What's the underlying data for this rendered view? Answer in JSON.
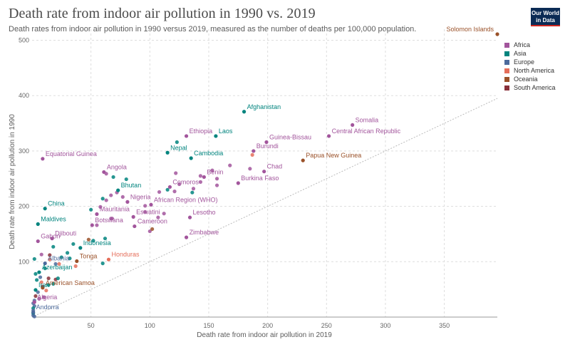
{
  "header": {
    "title": "Death rate from indoor air pollution in 1990 vs. 2019",
    "subtitle": "Death rates from indoor air pollution in 1990 versus 2019, measured as the number of deaths per 100,000 population.",
    "logo_line1": "Our World",
    "logo_line2": "in Data"
  },
  "colors": {
    "Africa": "#a2559c",
    "Asia": "#00847e",
    "Europe": "#4c6a9c",
    "North America": "#e56e5a",
    "Oceania": "#9a5129",
    "South America": "#883039",
    "logo_bg": "#0b2b55",
    "logo_accent": "#ce261e"
  },
  "chart_data": {
    "type": "scatter",
    "title": "Death rate from indoor air pollution in 1990 vs. 2019",
    "xlabel": "Death rate from indoor air pollution in 2019",
    "ylabel": "Death rate from indoor air pollution in 1990",
    "xlim": [
      0,
      395
    ],
    "ylim": [
      0,
      520
    ],
    "xticks": [
      50,
      100,
      150,
      200,
      250,
      300,
      350
    ],
    "yticks": [
      100,
      200,
      300,
      400,
      500
    ],
    "grid": true,
    "diagonal_reference_line": true,
    "legend_position": "right",
    "legend": [
      "Africa",
      "Asia",
      "Europe",
      "North America",
      "Oceania",
      "South America"
    ],
    "labeled_points": [
      {
        "name": "Solomon Islands",
        "region": "Oceania",
        "x": 395,
        "y": 511
      },
      {
        "name": "Afghanistan",
        "region": "Asia",
        "x": 180,
        "y": 371
      },
      {
        "name": "Somalia",
        "region": "Africa",
        "x": 272,
        "y": 347
      },
      {
        "name": "Central African Republic",
        "region": "Africa",
        "x": 252,
        "y": 327
      },
      {
        "name": "Ethiopia",
        "region": "Africa",
        "x": 131,
        "y": 327
      },
      {
        "name": "Laos",
        "region": "Asia",
        "x": 156,
        "y": 327
      },
      {
        "name": "Guinea-Bissau",
        "region": "Africa",
        "x": 199,
        "y": 316
      },
      {
        "name": "Burundi",
        "region": "Africa",
        "x": 188,
        "y": 300
      },
      {
        "name": "Nepal",
        "region": "Asia",
        "x": 115,
        "y": 297
      },
      {
        "name": "Cambodia",
        "region": "Asia",
        "x": 135,
        "y": 287
      },
      {
        "name": "Equatorial Guinea",
        "region": "Africa",
        "x": 9,
        "y": 286
      },
      {
        "name": "Papua New Guinea",
        "region": "Oceania",
        "x": 230,
        "y": 283
      },
      {
        "name": "Chad",
        "region": "Africa",
        "x": 197,
        "y": 263
      },
      {
        "name": "Angola",
        "region": "Africa",
        "x": 61,
        "y": 262
      },
      {
        "name": "Benin",
        "region": "Africa",
        "x": 146,
        "y": 253
      },
      {
        "name": "Burkina Faso",
        "region": "Africa",
        "x": 175,
        "y": 242
      },
      {
        "name": "Comoros",
        "region": "Africa",
        "x": 117,
        "y": 235
      },
      {
        "name": "Bhutan",
        "region": "Asia",
        "x": 73,
        "y": 229
      },
      {
        "name": "Nigeria",
        "region": "Africa",
        "x": 81,
        "y": 208
      },
      {
        "name": "African Region (WHO)",
        "region": "Africa",
        "x": 101,
        "y": 203
      },
      {
        "name": "China",
        "region": "Asia",
        "x": 11,
        "y": 196
      },
      {
        "name": "Mauritania",
        "region": "Africa",
        "x": 55,
        "y": 186
      },
      {
        "name": "Eswatini",
        "region": "Africa",
        "x": 86,
        "y": 181
      },
      {
        "name": "Lesotho",
        "region": "Africa",
        "x": 134,
        "y": 180
      },
      {
        "name": "Maldives",
        "region": "Asia",
        "x": 5,
        "y": 168
      },
      {
        "name": "Botswana",
        "region": "Africa",
        "x": 51,
        "y": 166
      },
      {
        "name": "Cameroon",
        "region": "Africa",
        "x": 87,
        "y": 164
      },
      {
        "name": "Zimbabwe",
        "region": "Africa",
        "x": 131,
        "y": 144
      },
      {
        "name": "Djibouti",
        "region": "Africa",
        "x": 17,
        "y": 142
      },
      {
        "name": "Gabon",
        "region": "Africa",
        "x": 5,
        "y": 137
      },
      {
        "name": "Indonesia",
        "region": "Asia",
        "x": 41,
        "y": 125
      },
      {
        "name": "Honduras",
        "region": "North America",
        "x": 65,
        "y": 104
      },
      {
        "name": "Albania",
        "region": "Europe",
        "x": 11,
        "y": 97
      },
      {
        "name": "Tonga",
        "region": "Oceania",
        "x": 38,
        "y": 101
      },
      {
        "name": "Azerbaijan",
        "region": "Asia",
        "x": 6,
        "y": 81
      },
      {
        "name": "American Samoa",
        "region": "Oceania",
        "x": 9,
        "y": 53
      },
      {
        "name": "Iran",
        "region": "Asia",
        "x": 3,
        "y": 49
      },
      {
        "name": "Algeria",
        "region": "Africa",
        "x": 2,
        "y": 27
      },
      {
        "name": "Andorra",
        "region": "Europe",
        "x": 1,
        "y": 9
      }
    ],
    "unlabeled_points": [
      {
        "region": "Asia",
        "x": 2,
        "y": 105
      },
      {
        "region": "Africa",
        "x": 63,
        "y": 259
      },
      {
        "region": "Asia",
        "x": 69,
        "y": 253
      },
      {
        "region": "Asia",
        "x": 80,
        "y": 249
      },
      {
        "region": "Asia",
        "x": 115,
        "y": 230
      },
      {
        "region": "Africa",
        "x": 72,
        "y": 225
      },
      {
        "region": "Africa",
        "x": 121,
        "y": 227
      },
      {
        "region": "Africa",
        "x": 125,
        "y": 240
      },
      {
        "region": "Africa",
        "x": 168,
        "y": 274
      },
      {
        "region": "Africa",
        "x": 185,
        "y": 268
      },
      {
        "region": "Africa",
        "x": 153,
        "y": 265
      },
      {
        "region": "Africa",
        "x": 143,
        "y": 255
      },
      {
        "region": "Asia",
        "x": 136,
        "y": 225
      },
      {
        "region": "Africa",
        "x": 143,
        "y": 244
      },
      {
        "region": "Africa",
        "x": 137,
        "y": 232
      },
      {
        "region": "North America",
        "x": 187,
        "y": 293
      },
      {
        "region": "Asia",
        "x": 123,
        "y": 316
      },
      {
        "region": "Africa",
        "x": 122,
        "y": 260
      },
      {
        "region": "Africa",
        "x": 157,
        "y": 238
      },
      {
        "region": "Africa",
        "x": 157,
        "y": 250
      },
      {
        "region": "Africa",
        "x": 67,
        "y": 220
      },
      {
        "region": "Africa",
        "x": 63,
        "y": 211
      },
      {
        "region": "Africa",
        "x": 77,
        "y": 217
      },
      {
        "region": "Asia",
        "x": 60,
        "y": 214
      },
      {
        "region": "Africa",
        "x": 108,
        "y": 226
      },
      {
        "region": "Africa",
        "x": 58,
        "y": 199
      },
      {
        "region": "Asia",
        "x": 50,
        "y": 194
      },
      {
        "region": "Africa",
        "x": 96,
        "y": 190
      },
      {
        "region": "Africa",
        "x": 96,
        "y": 201
      },
      {
        "region": "Africa",
        "x": 112,
        "y": 187
      },
      {
        "region": "Africa",
        "x": 107,
        "y": 180
      },
      {
        "region": "Africa",
        "x": 68,
        "y": 178
      },
      {
        "region": "Africa",
        "x": 67,
        "y": 178
      },
      {
        "region": "Africa",
        "x": 55,
        "y": 166
      },
      {
        "region": "Africa",
        "x": 100,
        "y": 155
      },
      {
        "region": "Oceania",
        "x": 102,
        "y": 159
      },
      {
        "region": "Asia",
        "x": 52,
        "y": 138
      },
      {
        "region": "Asia",
        "x": 62,
        "y": 142
      },
      {
        "region": "Oceania",
        "x": 48,
        "y": 140
      },
      {
        "region": "Asia",
        "x": 18,
        "y": 127
      },
      {
        "region": "Asia",
        "x": 35,
        "y": 132
      },
      {
        "region": "Asia",
        "x": 30,
        "y": 116
      },
      {
        "region": "Africa",
        "x": 8,
        "y": 113
      },
      {
        "region": "South America",
        "x": 15,
        "y": 112
      },
      {
        "region": "Asia",
        "x": 25,
        "y": 108
      },
      {
        "region": "North America",
        "x": 15,
        "y": 104
      },
      {
        "region": "Asia",
        "x": 32,
        "y": 106
      },
      {
        "region": "Asia",
        "x": 60,
        "y": 97
      },
      {
        "region": "North America",
        "x": 23,
        "y": 96
      },
      {
        "region": "North America",
        "x": 37,
        "y": 92
      },
      {
        "region": "Asia",
        "x": 11,
        "y": 88
      },
      {
        "region": "Europe",
        "x": 20,
        "y": 96
      },
      {
        "region": "Asia",
        "x": 3,
        "y": 78
      },
      {
        "region": "Europe",
        "x": 7,
        "y": 72
      },
      {
        "region": "South America",
        "x": 14,
        "y": 70
      },
      {
        "region": "South America",
        "x": 20,
        "y": 68
      },
      {
        "region": "Asia",
        "x": 22,
        "y": 70
      },
      {
        "region": "Asia",
        "x": 4,
        "y": 67
      },
      {
        "region": "North America",
        "x": 8,
        "y": 63
      },
      {
        "region": "Asia",
        "x": 14,
        "y": 58
      },
      {
        "region": "South America",
        "x": 9,
        "y": 55
      },
      {
        "region": "Asia",
        "x": 18,
        "y": 60
      },
      {
        "region": "North America",
        "x": 12,
        "y": 48
      },
      {
        "region": "Europe",
        "x": 5,
        "y": 45
      },
      {
        "region": "South America",
        "x": 3,
        "y": 38
      },
      {
        "region": "Africa",
        "x": 6,
        "y": 33
      },
      {
        "region": "Africa",
        "x": 10,
        "y": 36
      },
      {
        "region": "Europe",
        "x": 2,
        "y": 30
      },
      {
        "region": "Europe",
        "x": 1,
        "y": 25
      },
      {
        "region": "Europe",
        "x": 2,
        "y": 20
      },
      {
        "region": "Asia",
        "x": 1,
        "y": 16
      },
      {
        "region": "Europe",
        "x": 1,
        "y": 12
      },
      {
        "region": "Europe",
        "x": 1,
        "y": 6
      },
      {
        "region": "Europe",
        "x": 1,
        "y": 3
      },
      {
        "region": "Europe",
        "x": 2,
        "y": 1
      },
      {
        "region": "Asia",
        "x": 1,
        "y": 8
      }
    ]
  }
}
